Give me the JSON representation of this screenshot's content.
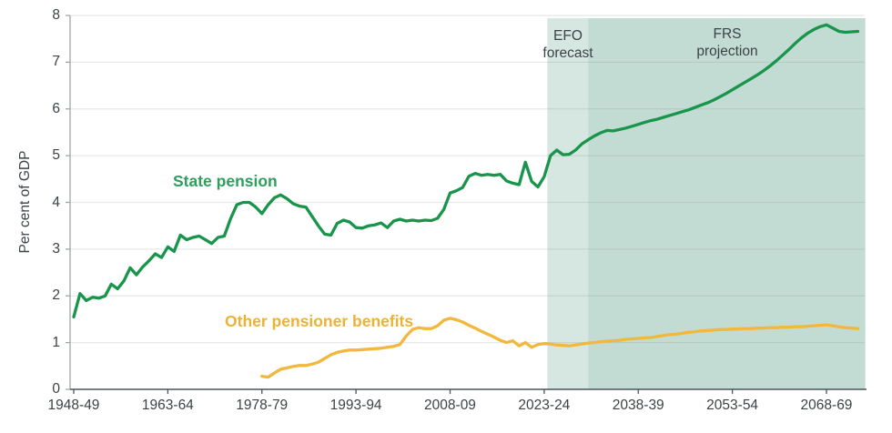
{
  "chart": {
    "state_pension_label": "State pension",
    "other_benefits_label": "Other pensioner benefits",
    "efo": [
      "EFO",
      "forecast"
    ],
    "frs": [
      "FRS",
      "projection"
    ]
  },
  "colors": {
    "state_pension_line": "#18954b",
    "other_benefits_line": "#f2b83d",
    "efo_band": "#d6e7e1",
    "frs_band": "#c3dcd3",
    "axis_text": "#3c4245",
    "x_axis": "#4d5357",
    "y_axis": "#a0a5a8",
    "gridline": "rgba(120,130,128,0.18)"
  },
  "chart_data": {
    "type": "line",
    "title": "",
    "xlabel": "",
    "ylabel": "Per cent of GDP",
    "ylim": [
      0,
      8
    ],
    "yticks": [
      0,
      1,
      2,
      3,
      4,
      5,
      6,
      7,
      8
    ],
    "xtick_labels": [
      "1948-49",
      "1963-64",
      "1978-79",
      "1993-94",
      "2008-09",
      "2023-24",
      "2038-39",
      "2053-54",
      "2068-69"
    ],
    "xtick_years": [
      1948,
      1963,
      1978,
      1993,
      2008,
      2023,
      2038,
      2053,
      2068
    ],
    "xlim_years": [
      1947.4,
      2074.2
    ],
    "grid": "horizontal",
    "legend_position": "inline-labels",
    "regions": [
      {
        "id": "efo",
        "label": "EFO forecast",
        "from_year": 2023.5,
        "to_year": 2030.0,
        "color": "#d6e7e1"
      },
      {
        "id": "frs",
        "label": "FRS projection",
        "from_year": 2030.0,
        "to_year": 2074.2,
        "color": "#c3dcd3"
      }
    ],
    "series": [
      {
        "name": "State pension",
        "color": "#18954b",
        "points": [
          [
            1948,
            1.55
          ],
          [
            1949,
            2.05
          ],
          [
            1950,
            1.9
          ],
          [
            1951,
            1.97
          ],
          [
            1952,
            1.95
          ],
          [
            1953,
            2.0
          ],
          [
            1954,
            2.25
          ],
          [
            1955,
            2.15
          ],
          [
            1956,
            2.32
          ],
          [
            1957,
            2.6
          ],
          [
            1958,
            2.45
          ],
          [
            1959,
            2.62
          ],
          [
            1960,
            2.75
          ],
          [
            1961,
            2.9
          ],
          [
            1962,
            2.82
          ],
          [
            1963,
            3.05
          ],
          [
            1964,
            2.95
          ],
          [
            1965,
            3.3
          ],
          [
            1966,
            3.2
          ],
          [
            1967,
            3.25
          ],
          [
            1968,
            3.28
          ],
          [
            1969,
            3.2
          ],
          [
            1970,
            3.12
          ],
          [
            1971,
            3.25
          ],
          [
            1972,
            3.28
          ],
          [
            1973,
            3.65
          ],
          [
            1974,
            3.95
          ],
          [
            1975,
            4.0
          ],
          [
            1976,
            4.0
          ],
          [
            1977,
            3.9
          ],
          [
            1978,
            3.76
          ],
          [
            1979,
            3.95
          ],
          [
            1980,
            4.1
          ],
          [
            1981,
            4.16
          ],
          [
            1982,
            4.08
          ],
          [
            1983,
            3.97
          ],
          [
            1984,
            3.92
          ],
          [
            1985,
            3.9
          ],
          [
            1986,
            3.7
          ],
          [
            1987,
            3.5
          ],
          [
            1988,
            3.32
          ],
          [
            1989,
            3.3
          ],
          [
            1990,
            3.55
          ],
          [
            1991,
            3.62
          ],
          [
            1992,
            3.58
          ],
          [
            1993,
            3.46
          ],
          [
            1994,
            3.45
          ],
          [
            1995,
            3.5
          ],
          [
            1996,
            3.52
          ],
          [
            1997,
            3.56
          ],
          [
            1998,
            3.46
          ],
          [
            1999,
            3.6
          ],
          [
            2000,
            3.64
          ],
          [
            2001,
            3.6
          ],
          [
            2002,
            3.62
          ],
          [
            2003,
            3.6
          ],
          [
            2004,
            3.62
          ],
          [
            2005,
            3.61
          ],
          [
            2006,
            3.66
          ],
          [
            2007,
            3.85
          ],
          [
            2008,
            4.2
          ],
          [
            2009,
            4.25
          ],
          [
            2010,
            4.32
          ],
          [
            2011,
            4.56
          ],
          [
            2012,
            4.62
          ],
          [
            2013,
            4.58
          ],
          [
            2014,
            4.6
          ],
          [
            2015,
            4.58
          ],
          [
            2016,
            4.6
          ],
          [
            2017,
            4.46
          ],
          [
            2018,
            4.41
          ],
          [
            2019,
            4.38
          ],
          [
            2020,
            4.86
          ],
          [
            2021,
            4.45
          ],
          [
            2022,
            4.33
          ],
          [
            2023,
            4.55
          ],
          [
            2024,
            5.0
          ],
          [
            2025,
            5.12
          ],
          [
            2026,
            5.02
          ],
          [
            2027,
            5.03
          ],
          [
            2028,
            5.12
          ],
          [
            2029,
            5.25
          ],
          [
            2030,
            5.34
          ],
          [
            2031,
            5.42
          ],
          [
            2032,
            5.49
          ],
          [
            2033,
            5.54
          ],
          [
            2034,
            5.53
          ],
          [
            2035,
            5.56
          ],
          [
            2036,
            5.59
          ],
          [
            2037,
            5.63
          ],
          [
            2038,
            5.67
          ],
          [
            2039,
            5.71
          ],
          [
            2040,
            5.75
          ],
          [
            2041,
            5.78
          ],
          [
            2042,
            5.82
          ],
          [
            2043,
            5.86
          ],
          [
            2044,
            5.9
          ],
          [
            2045,
            5.94
          ],
          [
            2046,
            5.98
          ],
          [
            2047,
            6.03
          ],
          [
            2048,
            6.08
          ],
          [
            2049,
            6.13
          ],
          [
            2050,
            6.19
          ],
          [
            2051,
            6.26
          ],
          [
            2052,
            6.33
          ],
          [
            2053,
            6.41
          ],
          [
            2054,
            6.49
          ],
          [
            2055,
            6.57
          ],
          [
            2056,
            6.65
          ],
          [
            2057,
            6.73
          ],
          [
            2058,
            6.82
          ],
          [
            2059,
            6.92
          ],
          [
            2060,
            7.03
          ],
          [
            2061,
            7.15
          ],
          [
            2062,
            7.27
          ],
          [
            2063,
            7.4
          ],
          [
            2064,
            7.52
          ],
          [
            2065,
            7.62
          ],
          [
            2066,
            7.7
          ],
          [
            2067,
            7.76
          ],
          [
            2068,
            7.8
          ],
          [
            2069,
            7.73
          ],
          [
            2070,
            7.66
          ],
          [
            2071,
            7.64
          ],
          [
            2072,
            7.65
          ],
          [
            2073,
            7.66
          ]
        ]
      },
      {
        "name": "Other pensioner benefits",
        "color": "#f2b83d",
        "points": [
          [
            1978,
            0.28
          ],
          [
            1979,
            0.26
          ],
          [
            1980,
            0.35
          ],
          [
            1981,
            0.43
          ],
          [
            1982,
            0.46
          ],
          [
            1983,
            0.49
          ],
          [
            1984,
            0.51
          ],
          [
            1985,
            0.51
          ],
          [
            1986,
            0.54
          ],
          [
            1987,
            0.58
          ],
          [
            1988,
            0.66
          ],
          [
            1989,
            0.74
          ],
          [
            1990,
            0.79
          ],
          [
            1991,
            0.82
          ],
          [
            1992,
            0.84
          ],
          [
            1993,
            0.84
          ],
          [
            1994,
            0.85
          ],
          [
            1995,
            0.86
          ],
          [
            1996,
            0.87
          ],
          [
            1997,
            0.88
          ],
          [
            1998,
            0.9
          ],
          [
            1999,
            0.92
          ],
          [
            2000,
            0.96
          ],
          [
            2001,
            1.14
          ],
          [
            2002,
            1.28
          ],
          [
            2003,
            1.32
          ],
          [
            2004,
            1.3
          ],
          [
            2005,
            1.3
          ],
          [
            2006,
            1.36
          ],
          [
            2007,
            1.48
          ],
          [
            2008,
            1.52
          ],
          [
            2009,
            1.49
          ],
          [
            2010,
            1.44
          ],
          [
            2011,
            1.37
          ],
          [
            2012,
            1.31
          ],
          [
            2013,
            1.24
          ],
          [
            2014,
            1.18
          ],
          [
            2015,
            1.12
          ],
          [
            2016,
            1.05
          ],
          [
            2017,
            1.0
          ],
          [
            2018,
            1.04
          ],
          [
            2019,
            0.93
          ],
          [
            2020,
            1.0
          ],
          [
            2021,
            0.9
          ],
          [
            2022,
            0.96
          ],
          [
            2023,
            0.98
          ],
          [
            2024,
            0.97
          ],
          [
            2025,
            0.95
          ],
          [
            2026,
            0.94
          ],
          [
            2027,
            0.93
          ],
          [
            2028,
            0.95
          ],
          [
            2029,
            0.97
          ],
          [
            2030,
            0.99
          ],
          [
            2031,
            1.0
          ],
          [
            2032,
            1.02
          ],
          [
            2033,
            1.03
          ],
          [
            2034,
            1.04
          ],
          [
            2035,
            1.05
          ],
          [
            2036,
            1.07
          ],
          [
            2037,
            1.08
          ],
          [
            2038,
            1.09
          ],
          [
            2039,
            1.1
          ],
          [
            2040,
            1.11
          ],
          [
            2041,
            1.13
          ],
          [
            2042,
            1.15
          ],
          [
            2043,
            1.17
          ],
          [
            2044,
            1.18
          ],
          [
            2045,
            1.2
          ],
          [
            2046,
            1.22
          ],
          [
            2047,
            1.23
          ],
          [
            2048,
            1.25
          ],
          [
            2049,
            1.26
          ],
          [
            2050,
            1.27
          ],
          [
            2051,
            1.28
          ],
          [
            2052,
            1.28
          ],
          [
            2053,
            1.29
          ],
          [
            2054,
            1.29
          ],
          [
            2055,
            1.3
          ],
          [
            2056,
            1.3
          ],
          [
            2057,
            1.31
          ],
          [
            2058,
            1.31
          ],
          [
            2059,
            1.32
          ],
          [
            2060,
            1.32
          ],
          [
            2061,
            1.33
          ],
          [
            2062,
            1.33
          ],
          [
            2063,
            1.34
          ],
          [
            2064,
            1.34
          ],
          [
            2065,
            1.35
          ],
          [
            2066,
            1.36
          ],
          [
            2067,
            1.37
          ],
          [
            2068,
            1.38
          ],
          [
            2069,
            1.36
          ],
          [
            2070,
            1.34
          ],
          [
            2071,
            1.32
          ],
          [
            2072,
            1.31
          ],
          [
            2073,
            1.3
          ]
        ]
      }
    ]
  }
}
